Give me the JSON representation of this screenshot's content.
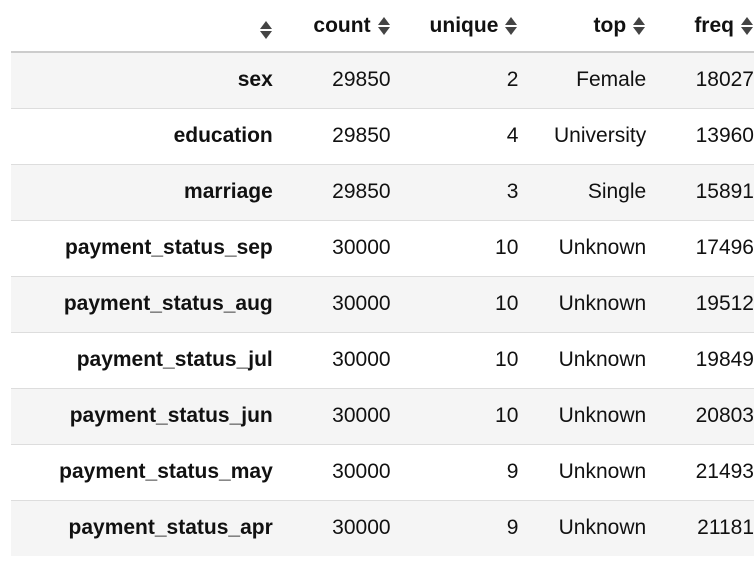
{
  "table": {
    "headers": {
      "index": "",
      "count": "count",
      "unique": "unique",
      "top": "top",
      "freq": "freq"
    },
    "rows": [
      {
        "name": "sex",
        "count": "29850",
        "unique": "2",
        "top": "Female",
        "freq": "18027"
      },
      {
        "name": "education",
        "count": "29850",
        "unique": "4",
        "top": "University",
        "freq": "13960"
      },
      {
        "name": "marriage",
        "count": "29850",
        "unique": "3",
        "top": "Single",
        "freq": "15891"
      },
      {
        "name": "payment_status_sep",
        "count": "30000",
        "unique": "10",
        "top": "Unknown",
        "freq": "17496"
      },
      {
        "name": "payment_status_aug",
        "count": "30000",
        "unique": "10",
        "top": "Unknown",
        "freq": "19512"
      },
      {
        "name": "payment_status_jul",
        "count": "30000",
        "unique": "10",
        "top": "Unknown",
        "freq": "19849"
      },
      {
        "name": "payment_status_jun",
        "count": "30000",
        "unique": "10",
        "top": "Unknown",
        "freq": "20803"
      },
      {
        "name": "payment_status_may",
        "count": "30000",
        "unique": "9",
        "top": "Unknown",
        "freq": "21493"
      },
      {
        "name": "payment_status_apr",
        "count": "30000",
        "unique": "9",
        "top": "Unknown",
        "freq": "21181"
      }
    ]
  },
  "icons": {
    "sort": "sort-icon"
  },
  "colors": {
    "stripe": "#f5f5f5",
    "header_border": "#cccccc",
    "row_border": "#dddddd",
    "text": "#111111"
  }
}
